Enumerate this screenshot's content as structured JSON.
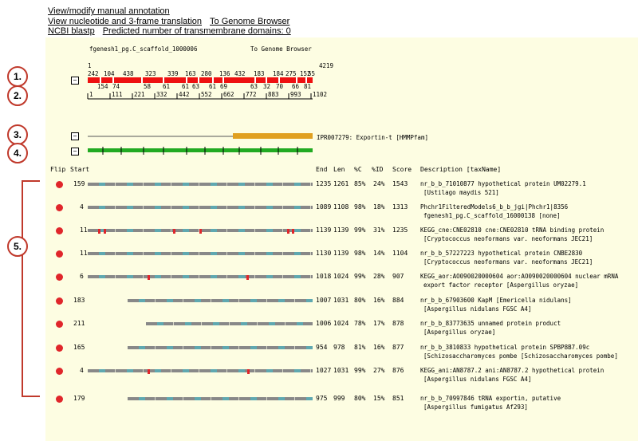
{
  "links": {
    "view_modify": "View/modify manual annotation",
    "view_nucleotide": "View nucleotide and 3-frame translation",
    "to_genome_browser": "To Genome Browser",
    "ncbi_blastp": "NCBI blastp",
    "tm_domains": "Predicted number of transmembrane domains: 0"
  },
  "header": {
    "model_name": "fgenesh1_pg.C_scaffold_1000006",
    "genome_browser": "To Genome Browser"
  },
  "gene": {
    "start_label": "1",
    "end_label": "4219",
    "exon_top": [
      "242",
      "104",
      "438",
      "323",
      "339",
      "163",
      "280",
      "136",
      "432",
      "183",
      "184",
      "275",
      "152",
      "55"
    ],
    "exon_bottom": [
      "154",
      "74",
      "58",
      "61",
      "61",
      "63",
      "61",
      "69",
      "63",
      "32",
      "70",
      "66",
      "81"
    ]
  },
  "ruler": {
    "ticks": [
      "1",
      "111",
      "221",
      "332",
      "442",
      "552",
      "662",
      "772",
      "883",
      "993",
      "1102"
    ]
  },
  "domain": {
    "label": "IPR007279: Exportin-t [HMMPfam]",
    "color": "#e0a020"
  },
  "callouts": [
    "1.",
    "2.",
    "3.",
    "4.",
    "5."
  ],
  "columns": {
    "flip": "Flip",
    "start": "Start",
    "end": "End",
    "len": "Len",
    "pc": "%C",
    "pid": "%ID",
    "score": "Score",
    "desc": "Description [taxName]"
  },
  "hits": [
    {
      "start": "159",
      "end": "1235",
      "len": "1261",
      "pc": "85%",
      "pid": "24%",
      "score": "1543",
      "line1": "nr_b_b_71010877 hypothetical protein UM02279.1",
      "line2": "[Ustilago maydis 521]"
    },
    {
      "start": "4",
      "end": "1089",
      "len": "1108",
      "pc": "98%",
      "pid": "18%",
      "score": "1313",
      "line1": "Phchr1FilteredModels6_b_b_jgi|Phchr1|8356",
      "line2": "fgenesh1_pg.C_scaffold_16000138 [none]"
    },
    {
      "start": "11",
      "end": "1139",
      "len": "1139",
      "pc": "99%",
      "pid": "31%",
      "score": "1235",
      "line1": "KEGG_cne:CNE02810 cne:CNE02810 tRNA binding protein",
      "line2": "[Cryptococcus neoformans var. neoformans JEC21]"
    },
    {
      "start": "11",
      "end": "1130",
      "len": "1139",
      "pc": "98%",
      "pid": "14%",
      "score": "1104",
      "line1": "nr_b_b_57227223 hypothetical protein CNBE2830",
      "line2": "[Cryptococcus neoformans var. neoformans JEC21]"
    },
    {
      "start": "6",
      "end": "1018",
      "len": "1024",
      "pc": "99%",
      "pid": "28%",
      "score": "907",
      "line1": "KEGG_aor:AO090020000604 aor:AO090020000604 nuclear mRNA",
      "line2": "export factor receptor [Aspergillus oryzae]"
    },
    {
      "start": "183",
      "end": "1007",
      "len": "1031",
      "pc": "80%",
      "pid": "16%",
      "score": "884",
      "line1": "nr_b_b_67903600 KapM [Emericella nidulans]",
      "line2": "[Aspergillus nidulans FGSC A4]"
    },
    {
      "start": "211",
      "end": "1006",
      "len": "1024",
      "pc": "78%",
      "pid": "17%",
      "score": "878",
      "line1": "nr_b_b_83773635 unnamed protein product",
      "line2": "[Aspergillus oryzae]"
    },
    {
      "start": "165",
      "end": "954",
      "len": "978",
      "pc": "81%",
      "pid": "16%",
      "score": "877",
      "line1": "nr_b_b_3810833 hypothetical protein SPBP8B7.09c",
      "line2": "[Schizosaccharomyces pombe [Schizosaccharomyces pombe]"
    },
    {
      "start": "4",
      "end": "1027",
      "len": "1031",
      "pc": "99%",
      "pid": "27%",
      "score": "876",
      "line1": "KEGG_ani:AN8787.2 ani:AN8787.2 hypothetical protein",
      "line2": "[Aspergillus nidulans FGSC A4]"
    },
    {
      "start": "179",
      "end": "975",
      "len": "999",
      "pc": "80%",
      "pid": "15%",
      "score": "851",
      "line1": "nr_b_b_70997846 tRNA exportin, putative",
      "line2": "[Aspergillus fumigatus Af293]"
    }
  ],
  "colors": {
    "exon": "#ee1111",
    "track_grey": "#888888",
    "track_teal": "#5fa8b0",
    "green": "#22aa22",
    "callout": "#c0392b"
  }
}
